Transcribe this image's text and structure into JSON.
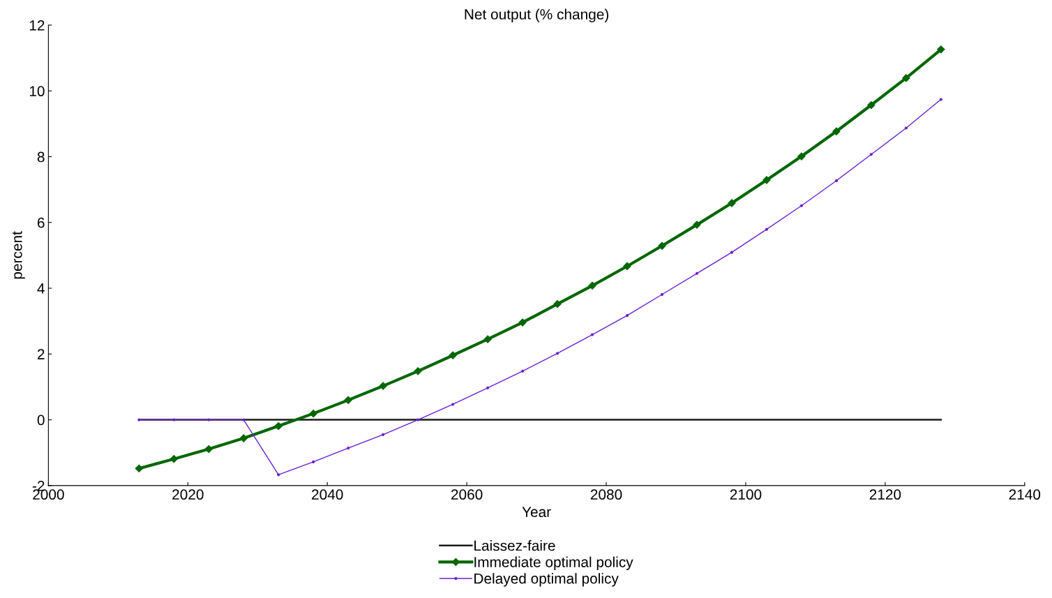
{
  "chart_data": {
    "type": "line",
    "title": "Net output (% change)",
    "xlabel": "Year",
    "ylabel": "percent",
    "x": [
      2013,
      2018,
      2023,
      2028,
      2033,
      2038,
      2043,
      2048,
      2053,
      2058,
      2063,
      2068,
      2073,
      2078,
      2083,
      2088,
      2093,
      2098,
      2103,
      2108,
      2113,
      2118,
      2123,
      2128
    ],
    "series": [
      {
        "name": "Laissez-faire",
        "color": "#1a1a1a",
        "marker": "none",
        "values": [
          0,
          0,
          0,
          0,
          0,
          0,
          0,
          0,
          0,
          0,
          0,
          0,
          0,
          0,
          0,
          0,
          0,
          0,
          0,
          0,
          0,
          0,
          0,
          0
        ]
      },
      {
        "name": "Immediate optimal policy",
        "color": "#006600",
        "marker": "diamond",
        "values": [
          -1.48,
          -1.19,
          -0.89,
          -0.56,
          -0.19,
          0.19,
          0.6,
          1.03,
          1.48,
          1.96,
          2.45,
          2.96,
          3.52,
          4.08,
          4.67,
          5.29,
          5.93,
          6.59,
          7.29,
          8.01,
          8.77,
          9.57,
          10.39,
          11.26
        ]
      },
      {
        "name": "Delayed optimal policy",
        "color": "#6a1fd0",
        "marker": "circle",
        "values": [
          0,
          0,
          0,
          0,
          -1.67,
          -1.28,
          -0.86,
          -0.45,
          0,
          0.47,
          0.97,
          1.48,
          2.02,
          2.59,
          3.17,
          3.81,
          4.45,
          5.09,
          5.79,
          6.51,
          7.27,
          8.07,
          8.87,
          9.74
        ]
      }
    ],
    "xlim": [
      2000,
      2140
    ],
    "xticks": [
      2000,
      2020,
      2040,
      2060,
      2080,
      2100,
      2120,
      2140
    ],
    "ylim": [
      -2,
      12
    ],
    "yticks": [
      -2,
      0,
      2,
      4,
      6,
      8,
      10,
      12
    ],
    "grid": false,
    "legend": "bottom",
    "line_style": "solid"
  }
}
